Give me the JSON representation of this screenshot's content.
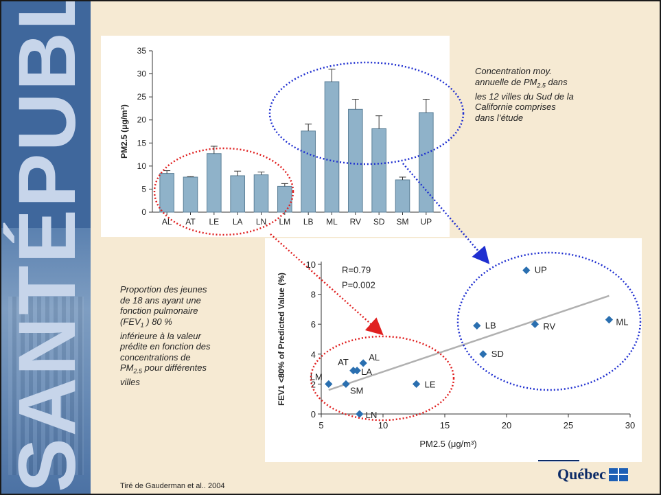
{
  "slide": {
    "band_word": "SANTÉPUBLIQUE",
    "caption_top": {
      "line1": "Concentration moy.",
      "line2_pre": "annuelle de PM",
      "line2_sub": "2.5",
      "line2_post": " dans",
      "line3": "les 12 villes du Sud de la",
      "line4": "Californie comprises",
      "line5": "dans l’étude"
    },
    "caption_left": {
      "line1": "Proportion des jeunes",
      "line2": "de 18 ans ayant une",
      "line3": "fonction pulmonaire",
      "line4_pre": "(FEV",
      "line4_sub": "1",
      "line4_post": " ) 80 %",
      "line5": "inférieure à la valeur",
      "line6": "prédite en fonction des",
      "line7": "concentrations de",
      "line8_pre": "PM",
      "line8_sub": "2.5",
      "line8_post": " pour différentes",
      "line9": "villes"
    },
    "credit": "Tiré de Gauderman et al.. 2004",
    "logo": "Québec",
    "colors": {
      "band": "#3f679c",
      "background": "#f6ead3",
      "bar_fill": "#8fb2c9",
      "scatter_point": "#2a6fb0",
      "red_ellipse": "#e02020",
      "blue_ellipse": "#1f2fd0"
    }
  },
  "chart_data": [
    {
      "type": "bar",
      "categories": [
        "AL",
        "AT",
        "LE",
        "LA",
        "LN",
        "LM",
        "LB",
        "ML",
        "RV",
        "SD",
        "SM",
        "UP"
      ],
      "values": [
        8.4,
        7.6,
        12.7,
        7.9,
        8.1,
        5.6,
        17.6,
        28.3,
        22.3,
        18.1,
        7.0,
        21.6
      ],
      "errors": [
        0.6,
        0.1,
        1.6,
        1.0,
        0.6,
        0.6,
        1.5,
        2.7,
        2.2,
        2.8,
        0.6,
        2.9
      ],
      "ylabel": "PM2.5 (μg/m³)",
      "ylim": [
        0,
        35
      ],
      "yticks": [
        "0",
        "5",
        "10",
        "15",
        "20",
        "25",
        "30",
        "35"
      ]
    },
    {
      "type": "scatter",
      "xlabel": "PM2.5 (μg/m³)",
      "ylabel": "FEV1 <80% of Predicted Value (%)",
      "xlim": [
        5,
        30
      ],
      "ylim": [
        0,
        10
      ],
      "xticks": [
        "5",
        "10",
        "15",
        "20",
        "25",
        "30"
      ],
      "yticks": [
        "0",
        "2",
        "4",
        "6",
        "8",
        "10"
      ],
      "annotation_r": "R=0.79",
      "annotation_p": "P=0.002",
      "points": [
        {
          "label": "LM",
          "x": 5.6,
          "y": 2.0
        },
        {
          "label": "SM",
          "x": 7.0,
          "y": 2.0
        },
        {
          "label": "AT",
          "x": 7.6,
          "y": 2.9
        },
        {
          "label": "LA",
          "x": 7.9,
          "y": 2.9
        },
        {
          "label": "LN",
          "x": 8.1,
          "y": 0.0
        },
        {
          "label": "AL",
          "x": 8.4,
          "y": 3.4
        },
        {
          "label": "LE",
          "x": 12.7,
          "y": 2.0
        },
        {
          "label": "LB",
          "x": 17.6,
          "y": 5.9
        },
        {
          "label": "SD",
          "x": 18.1,
          "y": 4.0
        },
        {
          "label": "UP",
          "x": 21.6,
          "y": 9.6
        },
        {
          "label": "RV",
          "x": 22.3,
          "y": 6.0
        },
        {
          "label": "ML",
          "x": 28.3,
          "y": 6.3
        }
      ],
      "trendline": {
        "x": [
          5.6,
          28.3
        ],
        "y": [
          1.6,
          7.9
        ]
      }
    }
  ]
}
